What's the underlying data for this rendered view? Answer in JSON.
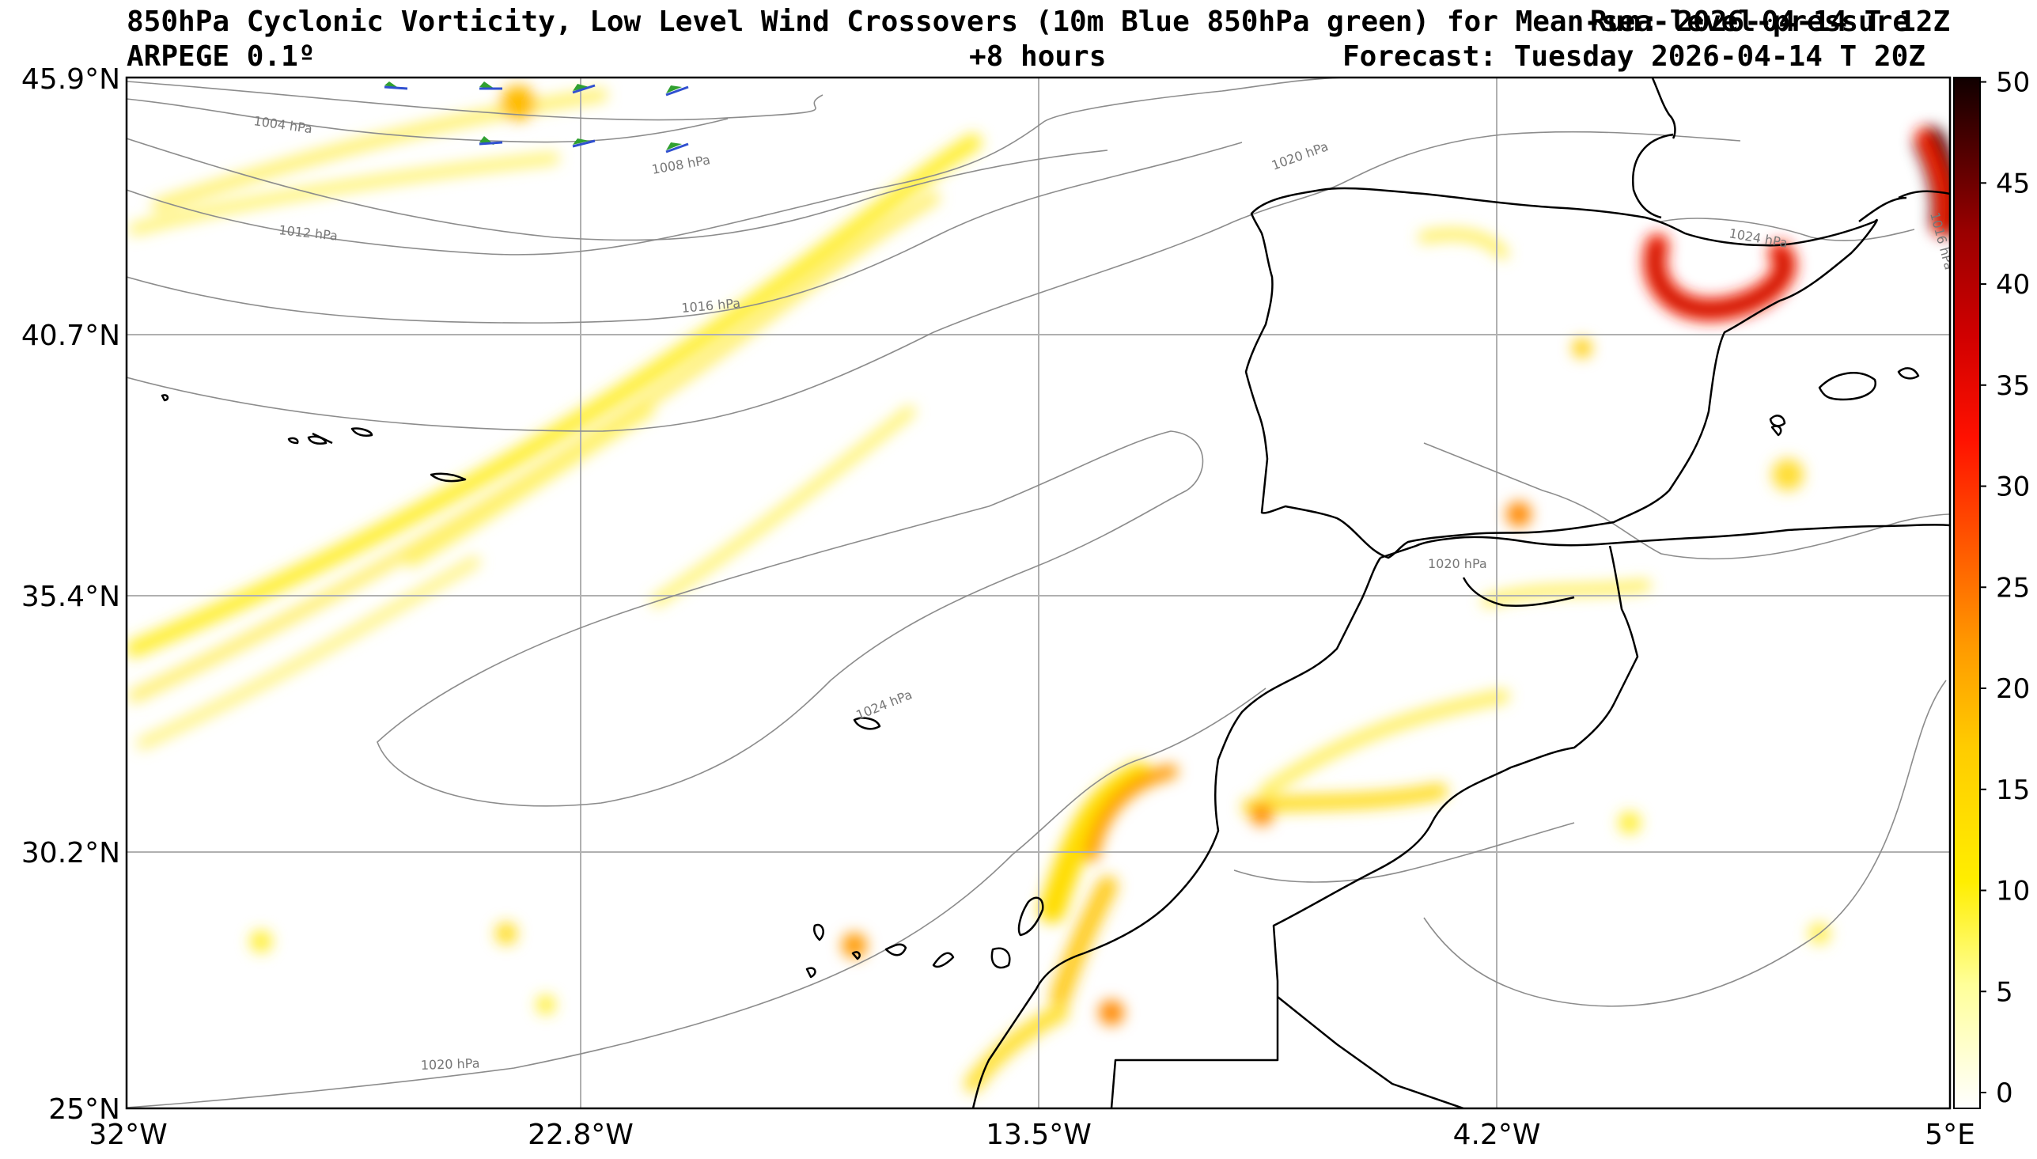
{
  "header": {
    "title": "850hPa Cyclonic Vorticity, Low Level Wind Crossovers (10m Blue 850hPa green) for Mean-sea-level-pressure",
    "run": "Run: 2026-04-14 T 12Z",
    "model": "ARPEGE 0.1º",
    "lead": "+8 hours",
    "valid": "Forecast: Tuesday 2026-04-14 T 20Z"
  },
  "map": {
    "lon_range": [
      -32,
      5
    ],
    "lat_range": [
      25,
      45.9
    ],
    "lon_ticks": [
      {
        "value": -32,
        "label": "32°W"
      },
      {
        "value": -22.8,
        "label": "22.8°W"
      },
      {
        "value": -13.5,
        "label": "13.5°W"
      },
      {
        "value": -4.2,
        "label": "4.2°W"
      },
      {
        "value": 5,
        "label": "5°E"
      }
    ],
    "lat_ticks": [
      {
        "value": 45.9,
        "label": "45.9°N"
      },
      {
        "value": 40.7,
        "label": "40.7°N"
      },
      {
        "value": 35.4,
        "label": "35.4°N"
      },
      {
        "value": 30.2,
        "label": "30.2°N"
      },
      {
        "value": 25,
        "label": "25°N"
      }
    ],
    "isobar_labels": [
      "1004 hPa",
      "1008 hPa",
      "1012 hPa",
      "1016 hPa",
      "1020 hPa",
      "1020 hPa",
      "1024 hPa",
      "1020 hPa",
      "1024 hPa",
      "1016 hPa"
    ],
    "colorbar": {
      "min": 0,
      "max": 51,
      "ticks": [
        "0",
        "5",
        "10",
        "15",
        "20",
        "25",
        "30",
        "35",
        "40",
        "45",
        "50"
      ],
      "colors": [
        "#ffffff",
        "#ffff99",
        "#ffee00",
        "#ffcc00",
        "#ff9900",
        "#ff6600",
        "#ff2200",
        "#e00000",
        "#b00000",
        "#700000",
        "#200000"
      ]
    },
    "colors": {
      "coast": "#000000",
      "isobar": "#8c8c8c",
      "grid": "#b0b0b0",
      "wind_10m": "#3050d0",
      "wind_850": "#30a030"
    }
  }
}
